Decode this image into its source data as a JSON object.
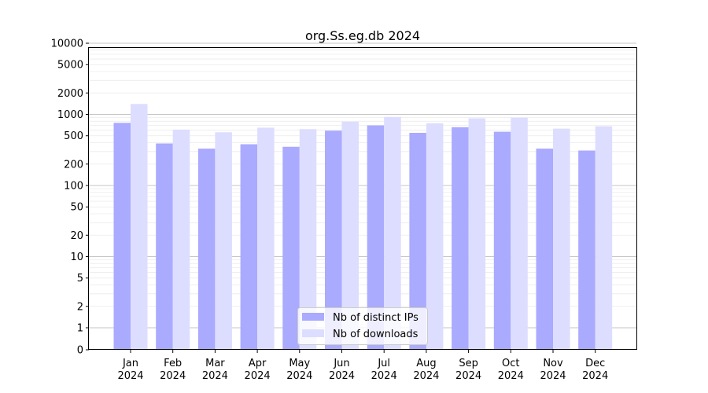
{
  "chart_data": {
    "type": "bar",
    "title": "org.Ss.eg.db 2024",
    "xlabel": "",
    "ylabel": "",
    "yscale": "symlog",
    "yticks": [
      0,
      1,
      2,
      5,
      10,
      20,
      50,
      100,
      200,
      500,
      1000,
      2000,
      5000,
      10000
    ],
    "ylim": [
      0,
      13000
    ],
    "grid": "horizontal",
    "legend_position": "bottom-center",
    "categories": [
      {
        "month": "Jan",
        "year": "2024"
      },
      {
        "month": "Feb",
        "year": "2024"
      },
      {
        "month": "Mar",
        "year": "2024"
      },
      {
        "month": "Apr",
        "year": "2024"
      },
      {
        "month": "May",
        "year": "2024"
      },
      {
        "month": "Jun",
        "year": "2024"
      },
      {
        "month": "Jul",
        "year": "2024"
      },
      {
        "month": "Aug",
        "year": "2024"
      },
      {
        "month": "Sep",
        "year": "2024"
      },
      {
        "month": "Oct",
        "year": "2024"
      },
      {
        "month": "Nov",
        "year": "2024"
      },
      {
        "month": "Dec",
        "year": "2024"
      }
    ],
    "series": [
      {
        "name": "Nb of distinct IPs",
        "color": "#aaaaff",
        "values": [
          760,
          390,
          330,
          380,
          350,
          590,
          700,
          550,
          660,
          570,
          330,
          310
        ]
      },
      {
        "name": "Nb of downloads",
        "color": "#ddddff",
        "values": [
          1400,
          610,
          560,
          650,
          620,
          790,
          920,
          750,
          880,
          900,
          630,
          680
        ]
      }
    ]
  }
}
